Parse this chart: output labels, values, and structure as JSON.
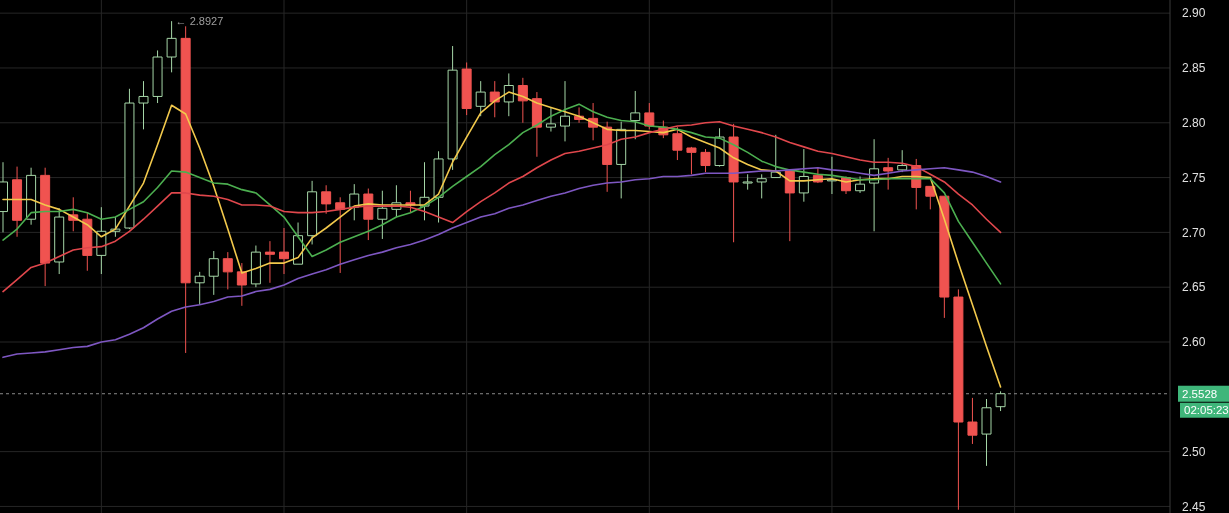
{
  "chart_data": {
    "type": "candlestick",
    "categories": [
      null,
      null,
      null,
      null,
      null,
      null,
      null,
      null,
      null,
      null,
      null,
      null,
      null,
      null,
      null,
      null,
      null,
      null,
      null,
      null,
      null,
      null,
      null,
      null,
      null,
      null,
      null,
      null,
      null,
      null,
      null,
      null,
      null,
      null,
      null,
      null,
      null,
      null,
      null,
      null,
      null,
      null,
      null,
      null,
      null,
      null,
      null,
      null,
      null,
      null,
      null,
      null,
      null,
      null,
      null,
      null,
      null,
      null,
      null,
      null,
      null,
      null,
      null,
      null,
      null,
      null,
      null,
      null,
      null,
      null,
      null,
      null
    ],
    "ohlc": [
      [
        2.719,
        2.764,
        2.7,
        2.746
      ],
      [
        2.748,
        2.76,
        2.696,
        2.711
      ],
      [
        2.712,
        2.759,
        2.707,
        2.752
      ],
      [
        2.752,
        2.759,
        2.651,
        2.672
      ],
      [
        2.673,
        2.722,
        2.662,
        2.714
      ],
      [
        2.716,
        2.732,
        2.701,
        2.711
      ],
      [
        2.712,
        2.718,
        2.665,
        2.679
      ],
      [
        2.679,
        2.723,
        2.662,
        2.701
      ],
      [
        2.701,
        2.714,
        2.696,
        2.703
      ],
      [
        2.704,
        2.831,
        2.703,
        2.818
      ],
      [
        2.818,
        2.838,
        2.794,
        2.824
      ],
      [
        2.824,
        2.866,
        2.818,
        2.86
      ],
      [
        2.86,
        2.8927,
        2.846,
        2.877
      ],
      [
        2.877,
        2.888,
        2.59,
        2.654
      ],
      [
        2.654,
        2.664,
        2.634,
        2.66
      ],
      [
        2.66,
        2.683,
        2.643,
        2.676
      ],
      [
        2.676,
        2.682,
        2.648,
        2.664
      ],
      [
        2.664,
        2.672,
        2.633,
        2.652
      ],
      [
        2.653,
        2.688,
        2.65,
        2.682
      ],
      [
        2.682,
        2.692,
        2.654,
        2.68
      ],
      [
        2.682,
        2.704,
        2.662,
        2.676
      ],
      [
        2.671,
        2.709,
        2.671,
        2.697
      ],
      [
        2.697,
        2.747,
        2.689,
        2.737
      ],
      [
        2.737,
        2.743,
        2.717,
        2.726
      ],
      [
        2.727,
        2.732,
        2.663,
        2.721
      ],
      [
        2.723,
        2.744,
        2.711,
        2.735
      ],
      [
        2.735,
        2.74,
        2.693,
        2.712
      ],
      [
        2.712,
        2.738,
        2.694,
        2.722
      ],
      [
        2.721,
        2.743,
        2.714,
        2.727
      ],
      [
        2.727,
        2.738,
        2.718,
        2.725
      ],
      [
        2.724,
        2.764,
        2.711,
        2.732
      ],
      [
        2.732,
        2.774,
        2.709,
        2.767
      ],
      [
        2.767,
        2.87,
        2.757,
        2.848
      ],
      [
        2.849,
        2.855,
        2.807,
        2.813
      ],
      [
        2.815,
        2.838,
        2.806,
        2.828
      ],
      [
        2.828,
        2.838,
        2.805,
        2.819
      ],
      [
        2.819,
        2.845,
        2.806,
        2.834
      ],
      [
        2.834,
        2.841,
        2.8,
        2.82
      ],
      [
        2.822,
        2.828,
        2.769,
        2.796
      ],
      [
        2.796,
        2.814,
        2.792,
        2.799
      ],
      [
        2.797,
        2.838,
        2.783,
        2.806
      ],
      [
        2.806,
        2.814,
        2.8,
        2.803
      ],
      [
        2.804,
        2.818,
        2.784,
        2.796
      ],
      [
        2.796,
        2.801,
        2.737,
        2.762
      ],
      [
        2.762,
        2.801,
        2.731,
        2.794
      ],
      [
        2.802,
        2.829,
        2.785,
        2.809
      ],
      [
        2.809,
        2.818,
        2.794,
        2.797
      ],
      [
        2.796,
        2.802,
        2.786,
        2.789
      ],
      [
        2.79,
        2.796,
        2.766,
        2.775
      ],
      [
        2.777,
        2.778,
        2.753,
        2.773
      ],
      [
        2.773,
        2.776,
        2.755,
        2.761
      ],
      [
        2.761,
        2.795,
        2.76,
        2.787
      ],
      [
        2.787,
        2.799,
        2.691,
        2.746
      ],
      [
        2.745,
        2.753,
        2.739,
        2.746
      ],
      [
        2.746,
        2.753,
        2.731,
        2.749
      ],
      [
        2.75,
        2.789,
        2.75,
        2.755
      ],
      [
        2.756,
        2.757,
        2.692,
        2.736
      ],
      [
        2.736,
        2.776,
        2.728,
        2.751
      ],
      [
        2.752,
        2.759,
        2.745,
        2.746
      ],
      [
        2.747,
        2.769,
        2.735,
        2.748
      ],
      [
        2.75,
        2.751,
        2.735,
        2.738
      ],
      [
        2.738,
        2.751,
        2.736,
        2.744
      ],
      [
        2.745,
        2.785,
        2.701,
        2.758
      ],
      [
        2.759,
        2.768,
        2.739,
        2.756
      ],
      [
        2.757,
        2.775,
        2.755,
        2.761
      ],
      [
        2.761,
        2.767,
        2.721,
        2.741
      ],
      [
        2.742,
        2.742,
        2.721,
        2.733
      ],
      [
        2.733,
        2.733,
        2.622,
        2.641
      ],
      [
        2.641,
        2.648,
        2.447,
        2.527
      ],
      [
        2.527,
        2.549,
        2.507,
        2.515
      ],
      [
        2.516,
        2.548,
        2.487,
        2.54
      ],
      [
        2.541,
        2.555,
        2.537,
        2.5528
      ]
    ],
    "series": [
      {
        "type": "line",
        "color": "#f2c94c",
        "values": [
          2.73,
          2.73,
          2.73,
          2.725,
          2.721,
          2.714,
          2.707,
          2.696,
          2.703,
          2.724,
          2.745,
          2.78,
          2.816,
          2.808,
          2.777,
          2.742,
          2.703,
          2.663,
          2.667,
          2.672,
          2.672,
          2.677,
          2.695,
          2.704,
          2.714,
          2.724,
          2.726,
          2.725,
          2.725,
          2.725,
          2.725,
          2.735,
          2.764,
          2.787,
          2.809,
          2.82,
          2.828,
          2.824,
          2.818,
          2.814,
          2.81,
          2.806,
          2.8,
          2.794,
          2.793,
          2.793,
          2.792,
          2.791,
          2.794,
          2.787,
          2.782,
          2.777,
          2.768,
          2.762,
          2.757,
          2.756,
          2.747,
          2.747,
          2.748,
          2.749,
          2.746,
          2.748,
          2.749,
          2.749,
          2.751,
          2.751,
          2.75,
          2.712,
          2.672,
          2.634,
          2.596,
          2.559
        ]
      },
      {
        "type": "line",
        "color": "#4caf50",
        "values": [
          2.693,
          2.703,
          2.718,
          2.719,
          2.719,
          2.721,
          2.718,
          2.712,
          2.714,
          2.721,
          2.728,
          2.741,
          2.756,
          2.755,
          2.75,
          2.745,
          2.744,
          2.739,
          2.736,
          2.725,
          2.714,
          2.696,
          2.678,
          2.684,
          2.691,
          2.696,
          2.701,
          2.707,
          2.714,
          2.718,
          2.724,
          2.732,
          2.742,
          2.751,
          2.76,
          2.771,
          2.78,
          2.791,
          2.798,
          2.806,
          2.812,
          2.817,
          2.81,
          2.805,
          2.802,
          2.801,
          2.797,
          2.796,
          2.794,
          2.791,
          2.787,
          2.786,
          2.78,
          2.773,
          2.765,
          2.76,
          2.757,
          2.755,
          2.753,
          2.752,
          2.75,
          2.748,
          2.748,
          2.749,
          2.749,
          2.749,
          2.749,
          2.736,
          2.71,
          2.691,
          2.672,
          2.653
        ]
      },
      {
        "type": "line",
        "color": "#e0474c",
        "values": [
          2.646,
          2.657,
          2.668,
          2.672,
          2.678,
          2.684,
          2.686,
          2.687,
          2.692,
          2.701,
          2.712,
          2.724,
          2.736,
          2.736,
          2.734,
          2.733,
          2.73,
          2.725,
          2.725,
          2.724,
          2.719,
          2.718,
          2.718,
          2.719,
          2.721,
          2.723,
          2.724,
          2.724,
          2.724,
          2.723,
          2.719,
          2.714,
          2.709,
          2.719,
          2.728,
          2.736,
          2.745,
          2.751,
          2.759,
          2.766,
          2.772,
          2.774,
          2.777,
          2.78,
          2.785,
          2.787,
          2.791,
          2.794,
          2.797,
          2.798,
          2.8,
          2.801,
          2.797,
          2.794,
          2.791,
          2.787,
          2.782,
          2.778,
          2.774,
          2.772,
          2.769,
          2.766,
          2.764,
          2.764,
          2.763,
          2.76,
          2.753,
          2.746,
          2.735,
          2.725,
          2.712,
          2.7
        ]
      },
      {
        "type": "line",
        "color": "#7e57c2",
        "values": [
          2.586,
          2.589,
          2.59,
          2.591,
          2.593,
          2.595,
          2.596,
          2.6,
          2.602,
          2.607,
          2.613,
          2.621,
          2.628,
          2.632,
          2.634,
          2.637,
          2.641,
          2.642,
          2.646,
          2.648,
          2.652,
          2.658,
          2.662,
          2.666,
          2.671,
          2.675,
          2.679,
          2.682,
          2.686,
          2.689,
          2.693,
          2.698,
          2.704,
          2.709,
          2.714,
          2.717,
          2.722,
          2.725,
          2.729,
          2.733,
          2.736,
          2.74,
          2.743,
          2.745,
          2.746,
          2.748,
          2.749,
          2.751,
          2.751,
          2.752,
          2.754,
          2.754,
          2.754,
          2.755,
          2.756,
          2.756,
          2.757,
          2.758,
          2.759,
          2.757,
          2.756,
          2.754,
          2.752,
          2.754,
          2.756,
          2.757,
          2.758,
          2.759,
          2.757,
          2.755,
          2.751,
          2.746
        ]
      }
    ],
    "ylim": [
      2.444,
      2.912
    ],
    "yticks": [
      2.45,
      {
        "value": 2.5,
        "label": "2.50"
      },
      {
        "value": 2.6,
        "label": "2.60"
      },
      2.65,
      {
        "value": 2.7,
        "label": "2.70"
      },
      2.75,
      {
        "value": 2.8,
        "label": "2.80"
      },
      2.85,
      {
        "value": 2.9,
        "label": "2.90"
      }
    ],
    "grid": true,
    "tick_labels": "y",
    "ref_lines": [
      {
        "axis": "y",
        "value": 2.5528,
        "label": "2.5528",
        "color": "#8a8a8a",
        "line_style": "dashed"
      }
    ],
    "annotations": [
      "← 2.8927",
      "02:05:23"
    ]
  }
}
